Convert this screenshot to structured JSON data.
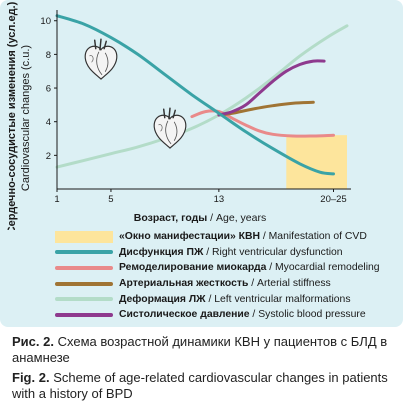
{
  "chart_data": {
    "type": "line",
    "ylabel": "Сердечно-сосудистые изменения (усл.ед.)",
    "ylabel_en": "Cardiovascular changes (c.u.)",
    "xlabel": "Возраст, годы",
    "xlabel_en": "Age, years",
    "ylim": [
      0,
      10.4
    ],
    "yticks": [
      2,
      4,
      6,
      8,
      10
    ],
    "xticks": [
      "1",
      "5",
      "13",
      "20–25"
    ],
    "manifestation_window": {
      "x_from": 18,
      "x_to": 22.5,
      "y_top": 3.2,
      "color": "#fde59c"
    },
    "series": [
      {
        "key": "rv",
        "name": "Дисфункция ПЖ",
        "name_en": "Right ventricular dysfunction",
        "color": "#3aa3a6",
        "width": 3,
        "points": [
          [
            1,
            10.3
          ],
          [
            3,
            9.8
          ],
          [
            5,
            9.0
          ],
          [
            7,
            8.0
          ],
          [
            9,
            6.8
          ],
          [
            11,
            5.6
          ],
          [
            13,
            4.5
          ],
          [
            15,
            3.4
          ],
          [
            17,
            2.4
          ],
          [
            19,
            1.5
          ],
          [
            20.5,
            1.0
          ],
          [
            21.5,
            0.9
          ]
        ]
      },
      {
        "key": "remod",
        "name": "Ремоделирование миокарда",
        "name_en": "Myocardial remodeling",
        "color": "#e98a8a",
        "width": 3,
        "points": [
          [
            11,
            4.3
          ],
          [
            12,
            4.6
          ],
          [
            13,
            4.6
          ],
          [
            14,
            4.2
          ],
          [
            15,
            3.8
          ],
          [
            16,
            3.45
          ],
          [
            17,
            3.25
          ],
          [
            18.5,
            3.15
          ],
          [
            20,
            3.15
          ],
          [
            21.5,
            3.2
          ]
        ]
      },
      {
        "key": "arterial",
        "name": "Артериальная жесткость",
        "name_en": "Arterial stiffness",
        "color": "#a07434",
        "width": 3,
        "points": [
          [
            13,
            4.4
          ],
          [
            14,
            4.5
          ],
          [
            15.5,
            4.75
          ],
          [
            17,
            4.95
          ],
          [
            18.5,
            5.1
          ],
          [
            20,
            5.15
          ]
        ]
      },
      {
        "key": "lv",
        "name": "Деформация ЛЖ",
        "name_en": "Left ventricular malformations",
        "color": "#b3dcc8",
        "width": 3,
        "points": [
          [
            1,
            1.3
          ],
          [
            3,
            1.7
          ],
          [
            5,
            2.1
          ],
          [
            7,
            2.5
          ],
          [
            9,
            3.0
          ],
          [
            11,
            3.6
          ],
          [
            13,
            4.4
          ],
          [
            15,
            5.4
          ],
          [
            17,
            6.6
          ],
          [
            19,
            7.9
          ],
          [
            21,
            9.0
          ],
          [
            22.5,
            9.7
          ]
        ]
      },
      {
        "key": "sbp",
        "name": "Систолическое давление",
        "name_en": "Systolic blood pressure",
        "color": "#8e3a8e",
        "width": 3,
        "points": [
          [
            13,
            4.4
          ],
          [
            14,
            4.6
          ],
          [
            15,
            5.0
          ],
          [
            16,
            5.7
          ],
          [
            17,
            6.4
          ],
          [
            18,
            7.0
          ],
          [
            19,
            7.4
          ],
          [
            20,
            7.6
          ],
          [
            20.8,
            7.6
          ]
        ]
      }
    ]
  },
  "legend": {
    "window": {
      "ru": "«Окно манифестации» КВН",
      "en": "Manifestation of CVD"
    },
    "items": [
      {
        "key": "rv",
        "ru": "Дисфункция ПЖ",
        "en": "Right ventricular dysfunction"
      },
      {
        "key": "remod",
        "ru": "Ремоделирование миокарда",
        "en": "Myocardial remodeling"
      },
      {
        "key": "arterial",
        "ru": "Артериальная жесткость",
        "en": "Arterial stiffness"
      },
      {
        "key": "lv",
        "ru": "Деформация ЛЖ",
        "en": "Left ventricular malformations"
      },
      {
        "key": "sbp",
        "ru": "Систолическое давление",
        "en": "Systolic blood pressure"
      }
    ]
  },
  "caption": {
    "ru_label": "Рис. 2.",
    "ru_text": "Схема возрастной динамики КВН у пациентов с БЛД в анамнезе",
    "en_label": "Fig. 2.",
    "en_text": "Scheme of age-related cardiovascular changes in patients with a history of BPD"
  }
}
